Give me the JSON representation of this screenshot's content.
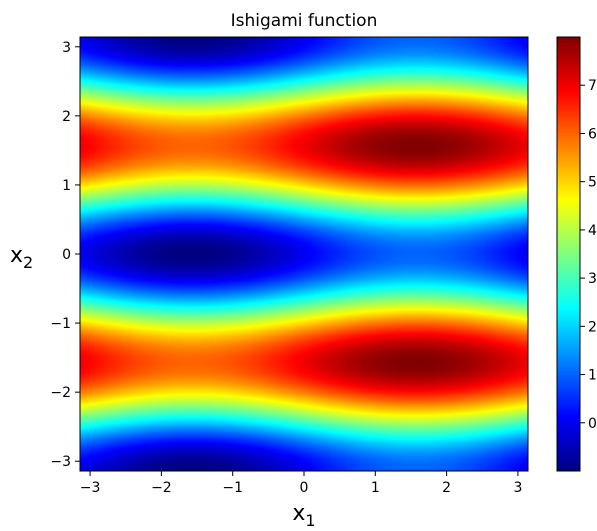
{
  "chart_data": {
    "type": "heatmap",
    "title": "Ishigami function",
    "xlabel": "x",
    "xlabel_sub": "1",
    "ylabel": "x",
    "ylabel_sub": "2",
    "function": "sin(x1) + 7*sin(x2)^2 + 0.1*x3^4*sin(x1), x3 = 0",
    "xlim": [
      -3.14159,
      3.14159
    ],
    "ylim": [
      -3.14159,
      3.14159
    ],
    "x_ticks": [
      {
        "value": -3,
        "label": "−3"
      },
      {
        "value": -2,
        "label": "−2"
      },
      {
        "value": -1,
        "label": "−1"
      },
      {
        "value": 0,
        "label": "0"
      },
      {
        "value": 1,
        "label": "1"
      },
      {
        "value": 2,
        "label": "2"
      },
      {
        "value": 3,
        "label": "3"
      }
    ],
    "y_ticks": [
      {
        "value": 3,
        "label": "3"
      },
      {
        "value": 2,
        "label": "2"
      },
      {
        "value": 1,
        "label": "1"
      },
      {
        "value": 0,
        "label": "0"
      },
      {
        "value": -1,
        "label": "−1"
      },
      {
        "value": -2,
        "label": "−2"
      },
      {
        "value": -3,
        "label": "−3"
      }
    ],
    "colorbar": {
      "colormap": "jet",
      "range": [
        -1,
        8
      ],
      "ticks": [
        {
          "value": 0,
          "label": "0"
        },
        {
          "value": 1,
          "label": "1"
        },
        {
          "value": 2,
          "label": "2"
        },
        {
          "value": 3,
          "label": "3"
        },
        {
          "value": 4,
          "label": "4"
        },
        {
          "value": 5,
          "label": "5"
        },
        {
          "value": 6,
          "label": "6"
        },
        {
          "value": 7,
          "label": "7"
        }
      ]
    },
    "grid": false
  }
}
